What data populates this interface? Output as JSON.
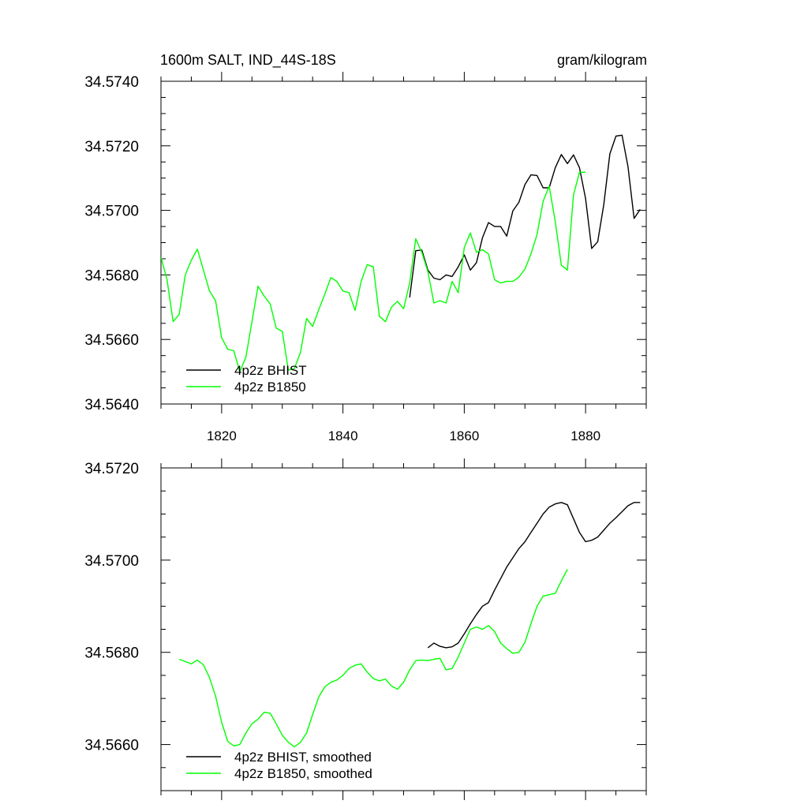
{
  "chart_data": [
    {
      "type": "line",
      "title_left": "1600m SALT, IND_44S-18S",
      "title_right": "gram/kilogram",
      "xlabel": "",
      "ylabel": "",
      "xlim": [
        1810,
        1890
      ],
      "ylim": [
        34.564,
        34.574
      ],
      "yticks": [
        34.564,
        34.566,
        34.568,
        34.57,
        34.572,
        34.574
      ],
      "ytick_labels": [
        "34.5640",
        "34.5660",
        "34.5680",
        "34.5700",
        "34.5720",
        "34.5740"
      ],
      "xticks": [
        1820,
        1840,
        1860,
        1880
      ],
      "xtick_labels": [
        "1820",
        "1840",
        "1860",
        "1880"
      ],
      "legend_position": "bottom-left",
      "series": [
        {
          "name": "4p2z BHIST",
          "color": "#000000",
          "x": [
            1851,
            1852,
            1853,
            1854,
            1855,
            1856,
            1857,
            1858,
            1859,
            1860,
            1861,
            1862,
            1863,
            1864,
            1865,
            1866,
            1867,
            1868,
            1869,
            1870,
            1871,
            1872,
            1873,
            1874,
            1875,
            1876,
            1877,
            1878,
            1879,
            1880,
            1881,
            1882,
            1883,
            1884,
            1885,
            1886,
            1887,
            1888,
            1889
          ],
          "y": [
            34.5673,
            34.56875,
            34.56877,
            34.56815,
            34.5679,
            34.56785,
            34.568,
            34.56795,
            34.56825,
            34.56862,
            34.56815,
            34.56838,
            34.56915,
            34.56962,
            34.5695,
            34.5695,
            34.5692,
            34.56998,
            34.57025,
            34.5708,
            34.5711,
            34.57108,
            34.5707,
            34.5707,
            34.57132,
            34.57173,
            34.57145,
            34.57172,
            34.57132,
            34.57037,
            34.56882,
            34.56903,
            34.57018,
            34.57175,
            34.5723,
            34.57233,
            34.57135,
            34.56975,
            34.57003
          ]
        },
        {
          "name": "4p2z B1850",
          "color": "#00ff00",
          "x": [
            1810,
            1811,
            1812,
            1813,
            1814,
            1815,
            1816,
            1817,
            1818,
            1819,
            1820,
            1821,
            1822,
            1823,
            1824,
            1825,
            1826,
            1827,
            1828,
            1829,
            1830,
            1831,
            1832,
            1833,
            1834,
            1835,
            1836,
            1837,
            1838,
            1839,
            1840,
            1841,
            1842,
            1843,
            1844,
            1845,
            1846,
            1847,
            1848,
            1849,
            1850,
            1851,
            1852,
            1853,
            1854,
            1855,
            1856,
            1857,
            1858,
            1859,
            1860,
            1861,
            1862,
            1863,
            1864,
            1865,
            1866,
            1867,
            1868,
            1869,
            1870,
            1871,
            1872,
            1873,
            1874,
            1875,
            1876,
            1877,
            1878,
            1879,
            1880
          ],
          "y": [
            34.56855,
            34.56785,
            34.56655,
            34.56678,
            34.568,
            34.56845,
            34.5688,
            34.56815,
            34.5675,
            34.5672,
            34.56605,
            34.5657,
            34.56565,
            34.565,
            34.56545,
            34.56655,
            34.56765,
            34.56735,
            34.5671,
            34.56635,
            34.56625,
            34.56505,
            34.5651,
            34.5656,
            34.56665,
            34.5664,
            34.56692,
            34.5674,
            34.56792,
            34.5678,
            34.5675,
            34.56745,
            34.5669,
            34.5678,
            34.56832,
            34.56825,
            34.56672,
            34.56655,
            34.567,
            34.56718,
            34.56695,
            34.56775,
            34.56912,
            34.5687,
            34.5681,
            34.56713,
            34.5672,
            34.56713,
            34.5678,
            34.56745,
            34.56885,
            34.5693,
            34.5687,
            34.56878,
            34.56865,
            34.56785,
            34.56775,
            34.5678,
            34.5678,
            34.56793,
            34.56818,
            34.56865,
            34.56925,
            34.57028,
            34.57075,
            34.56965,
            34.5683,
            34.56815,
            34.57048,
            34.57118,
            34.57118
          ]
        }
      ]
    },
    {
      "type": "line",
      "title_left": "",
      "title_right": "",
      "xlabel": "",
      "ylabel": "",
      "xlim": [
        1810,
        1890
      ],
      "ylim": [
        34.565,
        34.572
      ],
      "yticks": [
        34.566,
        34.568,
        34.57,
        34.572
      ],
      "ytick_labels": [
        "34.5660",
        "34.5680",
        "34.5700",
        "34.5720"
      ],
      "xticks": [
        1820,
        1840,
        1860,
        1880
      ],
      "xtick_labels": [],
      "legend_position": "bottom-left",
      "series": [
        {
          "name": "4p2z BHIST, smoothed",
          "color": "#000000",
          "x": [
            1854,
            1855,
            1856,
            1857,
            1858,
            1859,
            1860,
            1861,
            1862,
            1863,
            1864,
            1865,
            1866,
            1867,
            1868,
            1869,
            1870,
            1871,
            1872,
            1873,
            1874,
            1875,
            1876,
            1877,
            1878,
            1879,
            1880,
            1881,
            1882,
            1883,
            1884,
            1885,
            1886,
            1887,
            1888,
            1889
          ],
          "y": [
            34.5681,
            34.5682,
            34.56813,
            34.5681,
            34.56812,
            34.5682,
            34.5684,
            34.56862,
            34.56882,
            34.569,
            34.56908,
            34.56935,
            34.5696,
            34.56985,
            34.57005,
            34.57025,
            34.5704,
            34.5706,
            34.5708,
            34.571,
            34.57115,
            34.57122,
            34.57125,
            34.5712,
            34.5709,
            34.5706,
            34.5704,
            34.57043,
            34.5705,
            34.57065,
            34.5708,
            34.57092,
            34.57105,
            34.57118,
            34.57125,
            34.57125
          ]
        },
        {
          "name": "4p2z B1850, smoothed",
          "color": "#00ff00",
          "x": [
            1813,
            1814,
            1815,
            1816,
            1817,
            1818,
            1819,
            1820,
            1821,
            1822,
            1823,
            1824,
            1825,
            1826,
            1827,
            1828,
            1829,
            1830,
            1831,
            1832,
            1833,
            1834,
            1835,
            1836,
            1837,
            1838,
            1839,
            1840,
            1841,
            1842,
            1843,
            1844,
            1845,
            1846,
            1847,
            1848,
            1849,
            1850,
            1851,
            1852,
            1853,
            1854,
            1855,
            1856,
            1857,
            1858,
            1859,
            1860,
            1861,
            1862,
            1863,
            1864,
            1865,
            1866,
            1867,
            1868,
            1869,
            1870,
            1871,
            1872,
            1873,
            1874,
            1875,
            1876,
            1877
          ],
          "y": [
            34.56785,
            34.5678,
            34.56775,
            34.56783,
            34.56773,
            34.56745,
            34.56705,
            34.56648,
            34.56607,
            34.56597,
            34.566,
            34.56625,
            34.56645,
            34.56655,
            34.5667,
            34.56668,
            34.56645,
            34.5662,
            34.56605,
            34.56595,
            34.56605,
            34.56625,
            34.56665,
            34.56703,
            34.56725,
            34.56735,
            34.5674,
            34.5675,
            34.56765,
            34.56772,
            34.56775,
            34.56757,
            34.56743,
            34.56738,
            34.56742,
            34.56727,
            34.5672,
            34.56735,
            34.56762,
            34.56782,
            34.56783,
            34.56782,
            34.56785,
            34.56787,
            34.56762,
            34.56765,
            34.5679,
            34.5682,
            34.5685,
            34.56855,
            34.5685,
            34.56858,
            34.56845,
            34.5682,
            34.56808,
            34.56798,
            34.568,
            34.56822,
            34.56862,
            34.569,
            34.56922,
            34.56925,
            34.56928,
            34.56955,
            34.5698
          ]
        }
      ]
    }
  ]
}
